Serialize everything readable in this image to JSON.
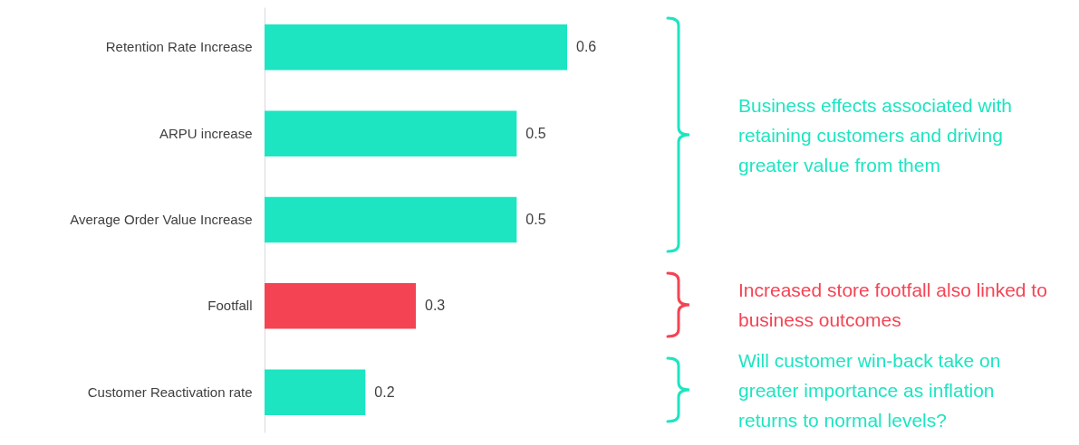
{
  "chart_data": {
    "type": "bar",
    "orientation": "horizontal",
    "categories": [
      "Retention Rate Increase",
      "ARPU increase",
      "Average Order Value Increase",
      "Footfall",
      "Customer Reactivation rate"
    ],
    "values": [
      0.6,
      0.5,
      0.5,
      0.3,
      0.2
    ],
    "colors": [
      "#1de5c1",
      "#1de5c1",
      "#1de5c1",
      "#f44454",
      "#1de5c1"
    ],
    "data_labels": true,
    "grid": false,
    "annotations": [
      "Business effects associated with retaining customers and driving greater value from them",
      "Increased store footfall also linked to business outcomes",
      "Will customer win-back take on greater importance as inflation returns to normal levels?"
    ]
  }
}
